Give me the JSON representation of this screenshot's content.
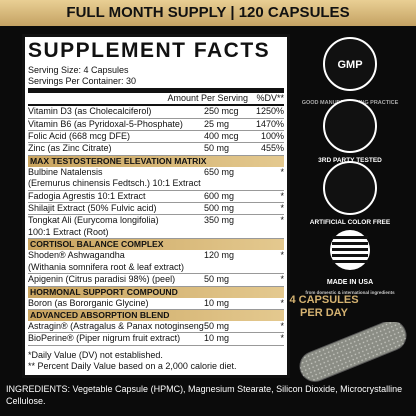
{
  "banner": "FULL MONTH SUPPLY | 120 CAPSULES",
  "panel": {
    "title": "SUPPLEMENT FACTS",
    "serving_size": "Serving Size: 4 Capsules",
    "servings_per_container": "Servings Per Container: 30",
    "amount_header": "Amount Per Serving",
    "dv_header": "%DV**",
    "vitamins": [
      {
        "name": "Vitamin D3 (as Cholecalciferol)",
        "amount": "250 mcg",
        "dv": "1250%"
      },
      {
        "name": "Vitamin B6 (as Pyridoxal-5-Phosphate)",
        "amount": "25 mg",
        "dv": "1470%"
      },
      {
        "name": "Folic Acid (668 mcg DFE)",
        "amount": "400 mcg",
        "dv": "100%"
      },
      {
        "name": "Zinc (as Zinc Citrate)",
        "amount": "50 mg",
        "dv": "455%"
      }
    ],
    "sections": [
      {
        "title": "MAX TESTOSTERONE ELEVATION MATRIX",
        "rows": [
          {
            "name": "Bulbine Natalensis",
            "detail": "(Eremurus chinensis Fedtsch.) 10:1 Extract",
            "amount": "650 mg",
            "dv": "*"
          },
          {
            "name": "Fadogia Agrestis 10:1 Extract",
            "amount": "600 mg",
            "dv": "*"
          },
          {
            "name": "Shilajit Extract (50% Fulvic acid)",
            "amount": "500 mg",
            "dv": "*"
          },
          {
            "name": "Tongkat Ali (Eurycoma longifolia)",
            "detail": "100:1 Extract (Root)",
            "amount": "350 mg",
            "dv": "*"
          }
        ]
      },
      {
        "title": "CORTISOL BALANCE COMPLEX",
        "rows": [
          {
            "name": "Shoden® Ashwagandha",
            "detail": "(Withania somnifera root & leaf extract)",
            "amount": "120 mg",
            "dv": "*"
          },
          {
            "name": "Apigenin (Citrus paradisi 98%) (peel)",
            "amount": "50 mg",
            "dv": "*"
          }
        ]
      },
      {
        "title": "HORMONAL SUPPORT COMPOUND",
        "rows": [
          {
            "name": "Boron (as Bororganic Glycine)",
            "amount": "10 mg",
            "dv": "*"
          }
        ]
      },
      {
        "title": "ADVANCED ABSORPTION BLEND",
        "rows": [
          {
            "name": "Astragin® (Astragalus & Panax notoginseng root)",
            "amount": "50 mg",
            "dv": "*"
          },
          {
            "name": "BioPerine® (Piper nigrum fruit extract)",
            "amount": "10 mg",
            "dv": "*"
          }
        ]
      }
    ],
    "footnotes": [
      "*Daily Value (DV) not established.",
      "** Percent Daily Value based on a 2,000 calorie diet."
    ]
  },
  "badges": [
    {
      "main": "GMP",
      "ring": "GOOD MANUFACTURING PRACTICE"
    },
    {
      "main": "3RD PARTY TESTED"
    },
    {
      "main": "ARTIFICIAL COLOR FREE"
    }
  ],
  "made_in": {
    "main": "MADE IN USA",
    "sub": "from domestic & international ingredients"
  },
  "capsules_per_day": "4 CAPSULES PER DAY",
  "ingredients": "INGREDIENTS: Vegetable Capsule (HPMC), Magnesium Stearate, Silicon Dioxide, Microcrystalline Cellulose."
}
